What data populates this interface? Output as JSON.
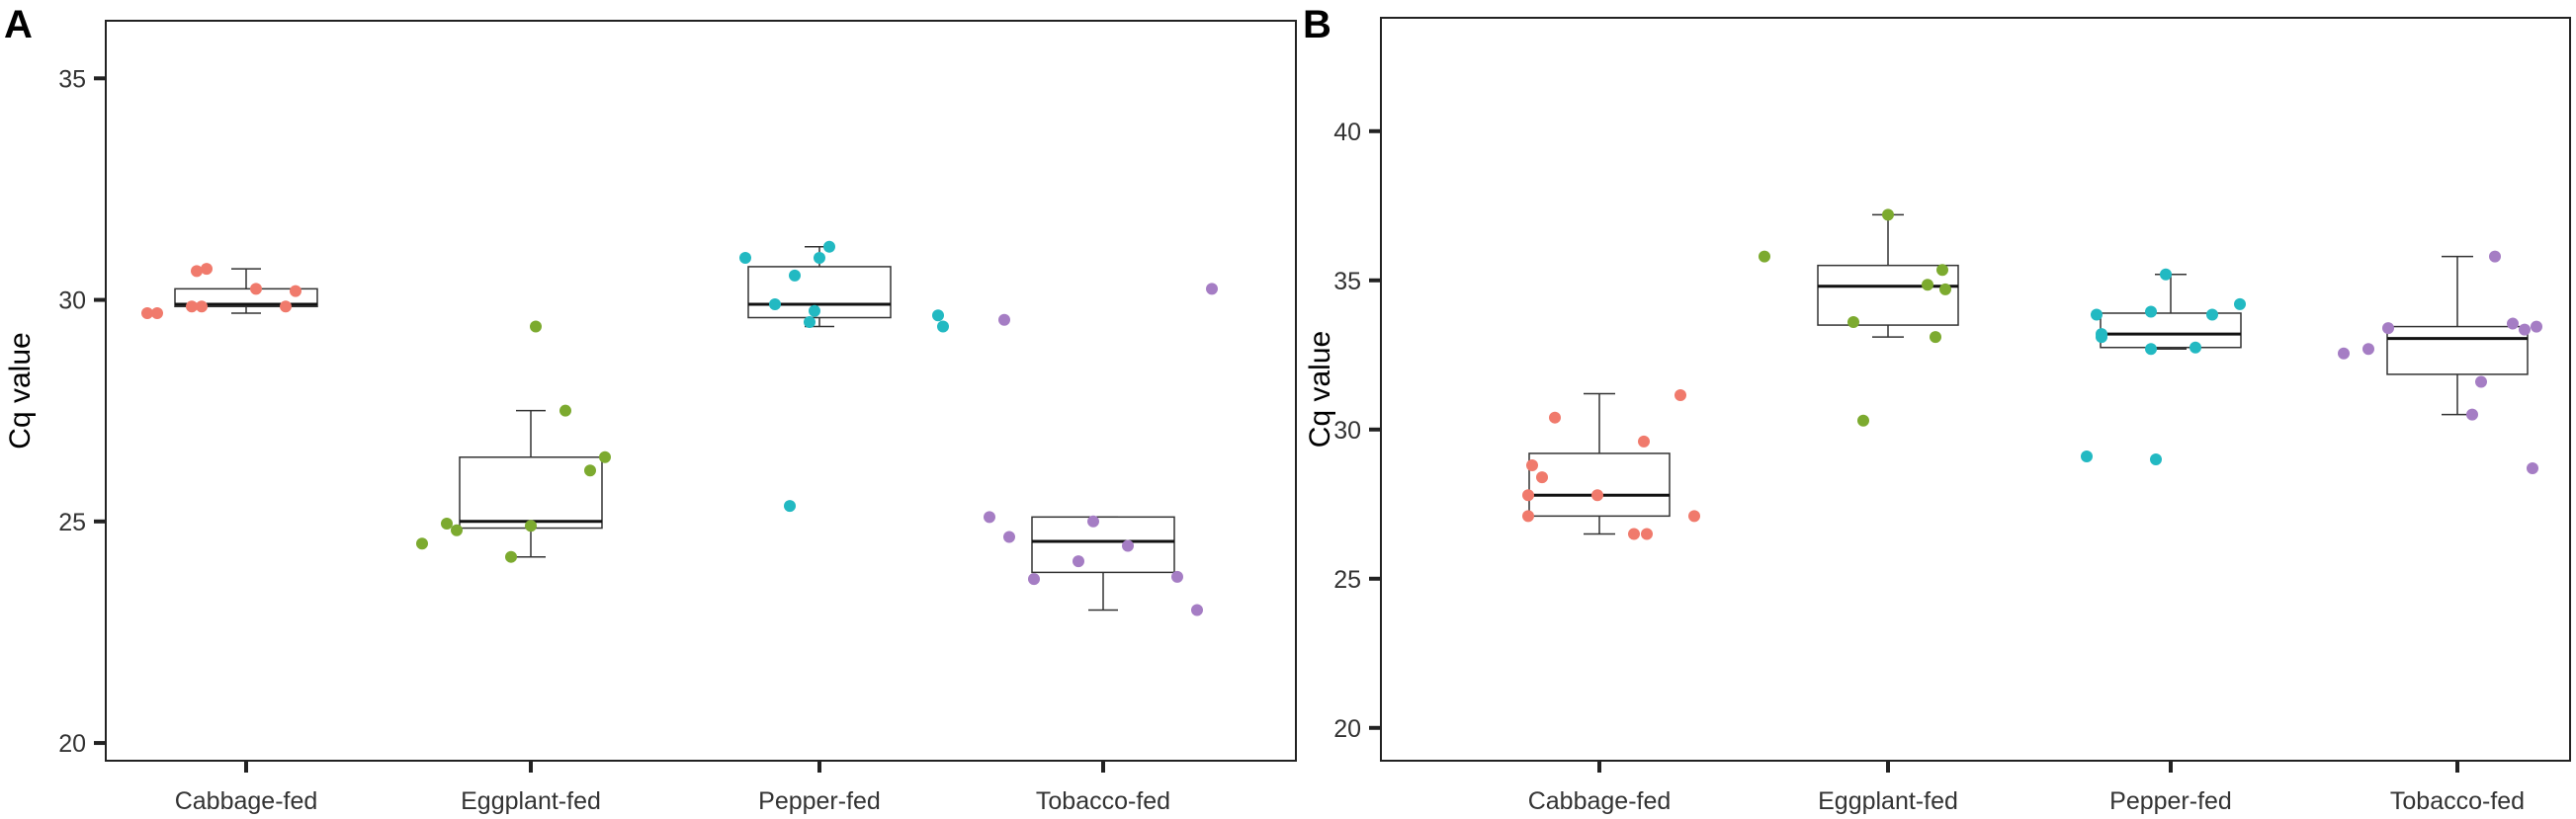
{
  "chart_data": [
    {
      "panel": "A",
      "type": "box",
      "title": "",
      "xlabel": "",
      "ylabel": "Cq value",
      "ylim": [
        19.6,
        36.3
      ],
      "yticks": [
        20,
        25,
        30,
        35
      ],
      "ytick_labels": [
        "20",
        "25",
        "30",
        "35"
      ],
      "grid": false,
      "categories": [
        "Cabbage-fed",
        "Eggplant-fed",
        "Pepper-fed",
        "Tobacco-fed"
      ],
      "boxes": [
        {
          "category": "Cabbage-fed",
          "min": 29.7,
          "q1": 29.85,
          "median": 29.9,
          "q3": 30.25,
          "max": 30.7
        },
        {
          "category": "Eggplant-fed",
          "min": 24.2,
          "q1": 24.85,
          "median": 25.0,
          "q3": 26.45,
          "max": 27.5
        },
        {
          "category": "Pepper-fed",
          "min": 29.4,
          "q1": 29.6,
          "median": 29.9,
          "q3": 30.75,
          "max": 31.2
        },
        {
          "category": "Tobacco-fed",
          "min": 23.0,
          "q1": 23.85,
          "median": 24.55,
          "q3": 25.1,
          "max": 25.1
        }
      ],
      "points": [
        {
          "category": "Cabbage-fed",
          "values": [
            29.7,
            29.7,
            29.85,
            29.85,
            30.65,
            30.7,
            30.25,
            29.85,
            30.2
          ]
        },
        {
          "category": "Eggplant-fed",
          "values": [
            24.5,
            24.95,
            24.8,
            24.2,
            29.4,
            27.5,
            26.15,
            26.45,
            24.9
          ]
        },
        {
          "category": "Pepper-fed",
          "values": [
            30.95,
            30.55,
            29.9,
            29.75,
            29.5,
            30.95,
            31.2,
            29.65,
            29.4,
            25.35
          ]
        },
        {
          "category": "Tobacco-fed",
          "values": [
            25.1,
            24.65,
            23.7,
            29.55,
            24.1,
            25.0,
            24.45,
            23.75,
            23.0,
            30.25
          ]
        }
      ],
      "colors": {
        "Cabbage-fed": "#f07a6c",
        "Eggplant-fed": "#7caa2f",
        "Pepper-fed": "#22b9c2",
        "Tobacco-fed": "#a57dc4"
      }
    },
    {
      "panel": "B",
      "type": "box",
      "title": "",
      "xlabel": "",
      "ylabel": "Cq value",
      "ylim": [
        18.9,
        43.8
      ],
      "yticks": [
        20,
        25,
        30,
        35,
        40
      ],
      "ytick_labels": [
        "20",
        "25",
        "30",
        "35",
        "40"
      ],
      "grid": false,
      "categories": [
        "Cabbage-fed",
        "Eggplant-fed",
        "Pepper-fed",
        "Tobacco-fed"
      ],
      "boxes": [
        {
          "category": "Cabbage-fed",
          "min": 26.5,
          "q1": 27.1,
          "median": 27.8,
          "q3": 29.2,
          "max": 31.2
        },
        {
          "category": "Eggplant-fed",
          "min": 33.1,
          "q1": 33.5,
          "median": 34.8,
          "q3": 35.5,
          "max": 37.2
        },
        {
          "category": "Pepper-fed",
          "min": 32.7,
          "q1": 32.75,
          "median": 33.2,
          "q3": 33.9,
          "max": 35.2
        },
        {
          "category": "Tobacco-fed",
          "min": 30.5,
          "q1": 31.85,
          "median": 33.05,
          "q3": 33.45,
          "max": 35.8
        }
      ],
      "points": [
        {
          "category": "Cabbage-fed",
          "values": [
            27.1,
            28.8,
            27.8,
            28.4,
            30.4,
            27.8,
            26.5,
            26.5,
            29.6,
            27.1,
            31.15
          ]
        },
        {
          "category": "Eggplant-fed",
          "values": [
            35.8,
            33.6,
            30.3,
            37.2,
            34.85,
            33.1,
            34.7,
            35.35
          ]
        },
        {
          "category": "Pepper-fed",
          "values": [
            29.1,
            33.85,
            33.1,
            33.2,
            29.0,
            32.7,
            33.95,
            35.2,
            32.75,
            33.85,
            34.2
          ]
        },
        {
          "category": "Tobacco-fed",
          "values": [
            32.55,
            32.7,
            33.4,
            31.6,
            35.8,
            30.5,
            33.55,
            33.35,
            33.45,
            28.7
          ]
        }
      ],
      "colors": {
        "Cabbage-fed": "#f07a6c",
        "Eggplant-fed": "#7caa2f",
        "Pepper-fed": "#22b9c2",
        "Tobacco-fed": "#a57dc4"
      }
    }
  ]
}
